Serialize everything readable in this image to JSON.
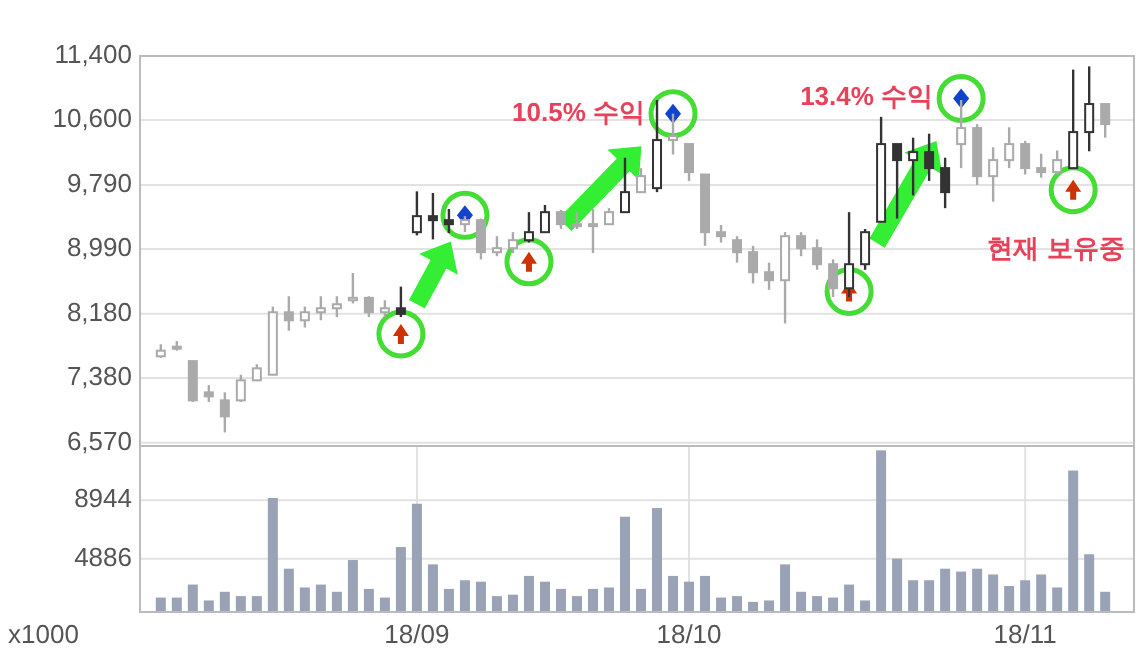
{
  "chart_data": [
    {
      "type": "candlestick",
      "categories": [
        null,
        null,
        null,
        null,
        null,
        null,
        null,
        null,
        null,
        null,
        null,
        null,
        null,
        null,
        null,
        null,
        null,
        null,
        null,
        null,
        null,
        null,
        null,
        null,
        null,
        null,
        null,
        null,
        null,
        null,
        null,
        null,
        null,
        null,
        null,
        null,
        null,
        null,
        null,
        null,
        null,
        null,
        null,
        null,
        null,
        null,
        null,
        null,
        null,
        null,
        null,
        null,
        null,
        null,
        null,
        null,
        null,
        null,
        null,
        null
      ],
      "ohlc": [
        [
          7650,
          7800,
          7630,
          7720
        ],
        [
          7760,
          7840,
          7720,
          7770
        ],
        [
          7590,
          7590,
          7080,
          7100
        ],
        [
          7200,
          7290,
          7080,
          7150
        ],
        [
          7100,
          7200,
          6700,
          6900
        ],
        [
          7100,
          7420,
          7080,
          7350
        ],
        [
          7350,
          7550,
          7340,
          7500
        ],
        [
          7420,
          8270,
          7420,
          8200
        ],
        [
          8200,
          8400,
          7970,
          8100
        ],
        [
          8100,
          8270,
          8010,
          8200
        ],
        [
          8200,
          8400,
          8100,
          8250
        ],
        [
          8250,
          8400,
          8140,
          8300
        ],
        [
          8350,
          8690,
          8310,
          8380
        ],
        [
          8380,
          8400,
          8140,
          8200
        ],
        [
          8200,
          8350,
          8140,
          8250
        ],
        [
          8250,
          8520,
          8140,
          8180
        ],
        [
          9200,
          9710,
          9160,
          9400
        ],
        [
          9400,
          9690,
          9110,
          9350
        ],
        [
          9350,
          9490,
          9190,
          9300
        ],
        [
          9300,
          9400,
          9200,
          9350
        ],
        [
          9350,
          9370,
          8860,
          8950
        ],
        [
          8950,
          9150,
          8900,
          9000
        ],
        [
          9000,
          9200,
          8940,
          9100
        ],
        [
          9100,
          9450,
          9070,
          9200
        ],
        [
          9200,
          9540,
          9200,
          9450
        ],
        [
          9450,
          9480,
          9240,
          9300
        ],
        [
          9300,
          9450,
          9240,
          9280
        ],
        [
          9280,
          9490,
          8940,
          9300
        ],
        [
          9300,
          9500,
          9300,
          9450
        ],
        [
          9450,
          10130,
          9450,
          9700
        ],
        [
          9700,
          10000,
          9700,
          9900
        ],
        [
          9750,
          10850,
          9700,
          10350
        ],
        [
          10350,
          10680,
          10170,
          10400
        ],
        [
          10300,
          10300,
          9840,
          9950
        ],
        [
          9920,
          9920,
          9030,
          9200
        ],
        [
          9200,
          9290,
          9070,
          9150
        ],
        [
          9100,
          9150,
          8820,
          8950
        ],
        [
          8950,
          9030,
          8560,
          8700
        ],
        [
          8700,
          8820,
          8480,
          8600
        ],
        [
          8600,
          9200,
          8060,
          9150
        ],
        [
          9150,
          9200,
          8900,
          9000
        ],
        [
          9000,
          9110,
          8730,
          8800
        ],
        [
          8800,
          8860,
          8390,
          8500
        ],
        [
          8500,
          9450,
          8390,
          8800
        ],
        [
          8800,
          9240,
          8730,
          9200
        ],
        [
          9330,
          10640,
          9330,
          10300
        ],
        [
          10300,
          10300,
          9370,
          10100
        ],
        [
          10100,
          10380,
          9660,
          10200
        ],
        [
          10200,
          10430,
          9840,
          10000
        ],
        [
          10000,
          10130,
          9500,
          9700
        ],
        [
          10300,
          10850,
          10000,
          10500
        ],
        [
          10500,
          10550,
          9790,
          9900
        ],
        [
          9900,
          10260,
          9580,
          10100
        ],
        [
          10100,
          10510,
          10000,
          10300
        ],
        [
          10300,
          10340,
          9920,
          10000
        ],
        [
          10000,
          10180,
          9880,
          9950
        ],
        [
          9950,
          10220,
          9920,
          10100
        ],
        [
          10000,
          11230,
          10000,
          10450
        ],
        [
          10450,
          11270,
          10210,
          10800
        ],
        [
          10800,
          10800,
          10380,
          10550
        ]
      ],
      "colors": [
        "#aaaaaa",
        "#aaaaaa",
        "#aaaaaa",
        "#aaaaaa",
        "#aaaaaa",
        "#aaaaaa",
        "#aaaaaa",
        "#aaaaaa",
        "#aaaaaa",
        "#aaaaaa",
        "#aaaaaa",
        "#aaaaaa",
        "#aaaaaa",
        "#aaaaaa",
        "#aaaaaa",
        "#333333",
        "#333333",
        "#333333",
        "#333333",
        "#aaaaaa",
        "#aaaaaa",
        "#aaaaaa",
        "#aaaaaa",
        "#333333",
        "#333333",
        "#aaaaaa",
        "#aaaaaa",
        "#aaaaaa",
        "#aaaaaa",
        "#333333",
        "#aaaaaa",
        "#333333",
        "#aaaaaa",
        "#aaaaaa",
        "#aaaaaa",
        "#aaaaaa",
        "#aaaaaa",
        "#aaaaaa",
        "#aaaaaa",
        "#aaaaaa",
        "#aaaaaa",
        "#aaaaaa",
        "#aaaaaa",
        "#333333",
        "#333333",
        "#333333",
        "#333333",
        "#333333",
        "#333333",
        "#333333",
        "#aaaaaa",
        "#aaaaaa",
        "#aaaaaa",
        "#aaaaaa",
        "#aaaaaa",
        "#aaaaaa",
        "#aaaaaa",
        "#333333",
        "#333333",
        "#aaaaaa"
      ],
      "ylim": [
        6530,
        11400
      ],
      "yticks": [
        {
          "value": 6570,
          "label": "6,570"
        },
        {
          "value": 7380,
          "label": "7,380"
        },
        {
          "value": 8180,
          "label": "8,180"
        },
        {
          "value": 8990,
          "label": "8,990"
        },
        {
          "value": 9790,
          "label": "9,790"
        },
        {
          "value": 10600,
          "label": "10,600"
        },
        {
          "value": 11400,
          "label": "11,400"
        }
      ],
      "grid": true,
      "tick_labels": "y",
      "series": [
        {
          "type": "scatter",
          "marker": "triangle",
          "color": "#cc3300",
          "values": [
            null,
            null,
            null,
            null,
            null,
            null,
            null,
            null,
            null,
            null,
            null,
            null,
            null,
            null,
            null,
            7930,
            null,
            null,
            null,
            null,
            null,
            null,
            null,
            8830,
            null,
            null,
            null,
            null,
            null,
            null,
            null,
            null,
            null,
            null,
            null,
            null,
            null,
            null,
            null,
            null,
            null,
            null,
            null,
            8460,
            null,
            null,
            null,
            null,
            null,
            null,
            null,
            null,
            null,
            null,
            null,
            null,
            null,
            9730,
            null,
            null
          ]
        },
        {
          "type": "scatter",
          "marker": "diamond",
          "color": "#1144cc",
          "values": [
            null,
            null,
            null,
            null,
            null,
            null,
            null,
            null,
            null,
            null,
            null,
            null,
            null,
            null,
            null,
            null,
            null,
            null,
            null,
            9410,
            null,
            null,
            null,
            null,
            null,
            null,
            null,
            null,
            null,
            null,
            null,
            null,
            10680,
            null,
            null,
            null,
            null,
            null,
            null,
            null,
            null,
            null,
            null,
            null,
            null,
            null,
            null,
            null,
            null,
            null,
            10870,
            null,
            null,
            null,
            null,
            null,
            null,
            null,
            null,
            null
          ]
        }
      ],
      "annotations": [
        "10.5% 수익",
        "13.4% 수익",
        "현재 보유중"
      ]
    },
    {
      "type": "bar",
      "categories": [
        null,
        null,
        null,
        null,
        null,
        null,
        null,
        null,
        null,
        null,
        null,
        null,
        null,
        null,
        null,
        null,
        "18/09",
        null,
        null,
        null,
        null,
        null,
        null,
        null,
        null,
        null,
        null,
        null,
        null,
        null,
        null,
        null,
        null,
        "18/10",
        null,
        null,
        null,
        null,
        null,
        null,
        null,
        null,
        null,
        null,
        null,
        null,
        null,
        null,
        null,
        null,
        null,
        null,
        null,
        null,
        "18/11",
        null,
        null,
        null,
        null,
        null
      ],
      "values": [
        2200,
        2200,
        3100,
        2000,
        2600,
        2300,
        2300,
        9100,
        4200,
        2900,
        3100,
        2600,
        4800,
        2800,
        2200,
        5700,
        8700,
        4500,
        2800,
        3400,
        3300,
        2300,
        2400,
        3700,
        3300,
        2800,
        2300,
        2800,
        2900,
        7800,
        2800,
        8400,
        3700,
        3300,
        3700,
        2200,
        2300,
        1900,
        2000,
        4500,
        2600,
        2300,
        2200,
        3100,
        2000,
        12400,
        4900,
        3400,
        3400,
        4200,
        4000,
        4200,
        3800,
        3000,
        3400,
        3800,
        2900,
        11000,
        5200,
        2600
      ],
      "color": "#9aa3b5",
      "ylim": [
        1200,
        12700
      ],
      "yticks": [
        4886,
        8944
      ],
      "grid": true,
      "annotations": [
        "x1000"
      ]
    }
  ]
}
